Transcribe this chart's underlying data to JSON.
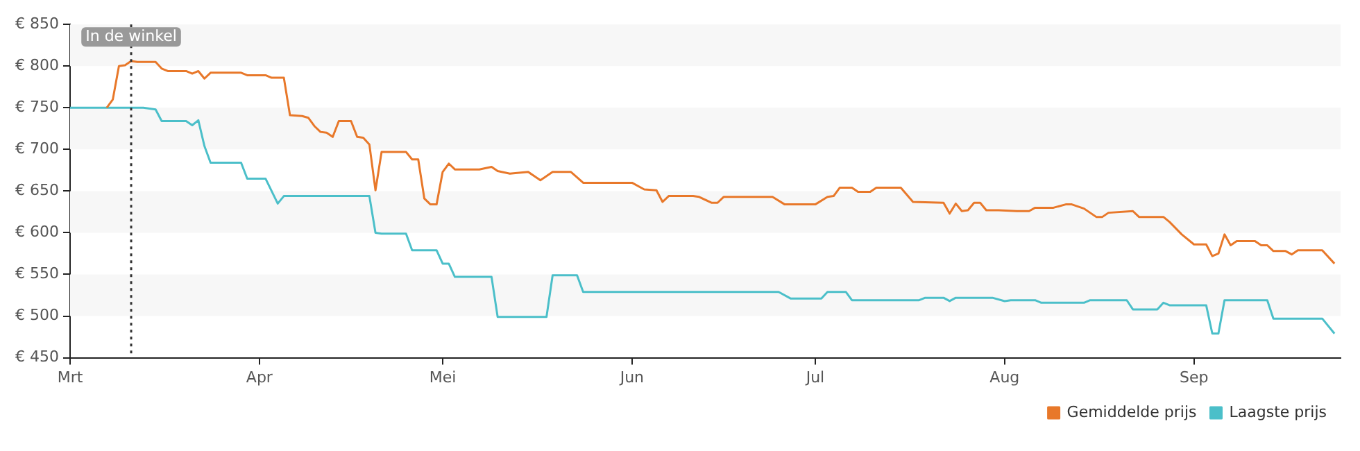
{
  "chart_data": {
    "type": "line",
    "xlim": [
      "--03-01",
      "--09-25"
    ],
    "xticks": [
      {
        "value": "--03-01",
        "label": "Mrt"
      },
      {
        "value": "--04-01",
        "label": "Apr"
      },
      {
        "value": "--05-01",
        "label": "Mei"
      },
      {
        "value": "--06-01",
        "label": "Jun"
      },
      {
        "value": "--07-01",
        "label": "Jul"
      },
      {
        "value": "--08-01",
        "label": "Aug"
      },
      {
        "value": "--09-01",
        "label": "Sep"
      }
    ],
    "ylim": [
      450,
      850
    ],
    "yticks": [
      {
        "value": 450,
        "label": "€ 450"
      },
      {
        "value": 500,
        "label": "€ 500"
      },
      {
        "value": 550,
        "label": "€ 550"
      },
      {
        "value": 600,
        "label": "€ 600"
      },
      {
        "value": 650,
        "label": "€ 650"
      },
      {
        "value": 700,
        "label": "€ 700"
      },
      {
        "value": 750,
        "label": "€ 750"
      },
      {
        "value": 800,
        "label": "€ 800"
      },
      {
        "value": 850,
        "label": "€ 850"
      }
    ],
    "bands": [
      {
        "axis": "y",
        "from": 800,
        "to": 850,
        "color": "#f7f7f7"
      },
      {
        "axis": "y",
        "from": 700,
        "to": 750,
        "color": "#f7f7f7"
      },
      {
        "axis": "y",
        "from": 600,
        "to": 650,
        "color": "#f7f7f7"
      },
      {
        "axis": "y",
        "from": 500,
        "to": 550,
        "color": "#f7f7f7"
      }
    ],
    "legend": "bottom right",
    "marker": "none",
    "line_style": "solid",
    "ref_lines": [
      {
        "axis": "x",
        "value": "--03-11",
        "label": "In de winkel",
        "color": "#333333",
        "line_style": "dotted"
      }
    ],
    "series": [
      {
        "name": "Gemiddelde prijs",
        "color": "#e8782a",
        "x": [
          "--03-07",
          "--03-08",
          "--03-09",
          "--03-10",
          "--03-11",
          "--03-12",
          "--03-15",
          "--03-16",
          "--03-17",
          "--03-20",
          "--03-21",
          "--03-22",
          "--03-23",
          "--03-24",
          "--03-29",
          "--03-30",
          "--04-02",
          "--04-03",
          "--04-05",
          "--04-06",
          "--04-08",
          "--04-09",
          "--04-10",
          "--04-11",
          "--04-12",
          "--04-13",
          "--04-14",
          "--04-16",
          "--04-17",
          "--04-18",
          "--04-19",
          "--04-20",
          "--04-21",
          "--04-25",
          "--04-26",
          "--04-27",
          "--04-28",
          "--04-29",
          "--04-30",
          "--05-01",
          "--05-02",
          "--05-03",
          "--05-07",
          "--05-09",
          "--05-10",
          "--05-12",
          "--05-15",
          "--05-17",
          "--05-19",
          "--05-22",
          "--05-24",
          "--06-01",
          "--06-03",
          "--06-05",
          "--06-06",
          "--06-07",
          "--06-11",
          "--06-12",
          "--06-14",
          "--06-15",
          "--06-16",
          "--06-24",
          "--06-26",
          "--07-01",
          "--07-03",
          "--07-04",
          "--07-05",
          "--07-07",
          "--07-08",
          "--07-10",
          "--07-11",
          "--07-15",
          "--07-17",
          "--07-22",
          "--07-23",
          "--07-24",
          "--07-25",
          "--07-26",
          "--07-27",
          "--07-28",
          "--07-29",
          "--07-31",
          "--08-03",
          "--08-05",
          "--08-06",
          "--08-09",
          "--08-11",
          "--08-12",
          "--08-14",
          "--08-16",
          "--08-17",
          "--08-18",
          "--08-22",
          "--08-23",
          "--08-27",
          "--08-28",
          "--08-30",
          "--09-01",
          "--09-03",
          "--09-04",
          "--09-05",
          "--09-06",
          "--09-07",
          "--09-08",
          "--09-11",
          "--09-12",
          "--09-13",
          "--09-14",
          "--09-16",
          "--09-17",
          "--09-18",
          "--09-22",
          "--09-24"
        ],
        "values": [
          750,
          760,
          800,
          801,
          806,
          805,
          805,
          797,
          794,
          794,
          791,
          794,
          785,
          792,
          792,
          789,
          789,
          786,
          786,
          741,
          740,
          738,
          728,
          721,
          720,
          715,
          734,
          734,
          715,
          714,
          706,
          651,
          697,
          697,
          688,
          688,
          641,
          634,
          634,
          673,
          683,
          676,
          676,
          679,
          674,
          671,
          673,
          663,
          673,
          673,
          660,
          660,
          652,
          651,
          637,
          644,
          644,
          643,
          636,
          636,
          643,
          643,
          634,
          634,
          643,
          644,
          654,
          654,
          649,
          649,
          654,
          654,
          637,
          636,
          623,
          635,
          626,
          627,
          636,
          636,
          627,
          627,
          626,
          626,
          630,
          630,
          634,
          634,
          629,
          619,
          619,
          624,
          626,
          619,
          619,
          613,
          598,
          586,
          586,
          572,
          575,
          598,
          585,
          590,
          590,
          585,
          585,
          578,
          578,
          574,
          579,
          579,
          563
        ]
      },
      {
        "name": "Laagste prijs",
        "color": "#4bbfc9",
        "x": [
          "--03-01",
          "--03-13",
          "--03-15",
          "--03-16",
          "--03-20",
          "--03-21",
          "--03-22",
          "--03-23",
          "--03-24",
          "--03-29",
          "--03-30",
          "--04-02",
          "--04-04",
          "--04-05",
          "--04-19",
          "--04-20",
          "--04-21",
          "--04-25",
          "--04-26",
          "--04-30",
          "--05-01",
          "--05-02",
          "--05-03",
          "--05-09",
          "--05-10",
          "--05-18",
          "--05-19",
          "--05-23",
          "--05-24",
          "--06-25",
          "--06-27",
          "--07-02",
          "--07-03",
          "--07-06",
          "--07-07",
          "--07-18",
          "--07-19",
          "--07-22",
          "--07-23",
          "--07-24",
          "--07-30",
          "--08-01",
          "--08-02",
          "--08-06",
          "--08-07",
          "--08-14",
          "--08-15",
          "--08-21",
          "--08-22",
          "--08-26",
          "--08-27",
          "--08-28",
          "--09-03",
          "--09-04",
          "--09-05",
          "--09-06",
          "--09-13",
          "--09-14",
          "--09-22",
          "--09-24"
        ],
        "values": [
          750,
          750,
          748,
          734,
          734,
          729,
          735,
          704,
          684,
          684,
          665,
          665,
          635,
          644,
          644,
          600,
          599,
          599,
          579,
          579,
          563,
          563,
          547,
          547,
          499,
          499,
          549,
          549,
          529,
          529,
          521,
          521,
          529,
          529,
          519,
          519,
          522,
          522,
          518,
          522,
          522,
          518,
          519,
          519,
          516,
          516,
          519,
          519,
          508,
          508,
          516,
          513,
          513,
          479,
          479,
          519,
          519,
          497,
          497,
          479
        ]
      }
    ]
  }
}
